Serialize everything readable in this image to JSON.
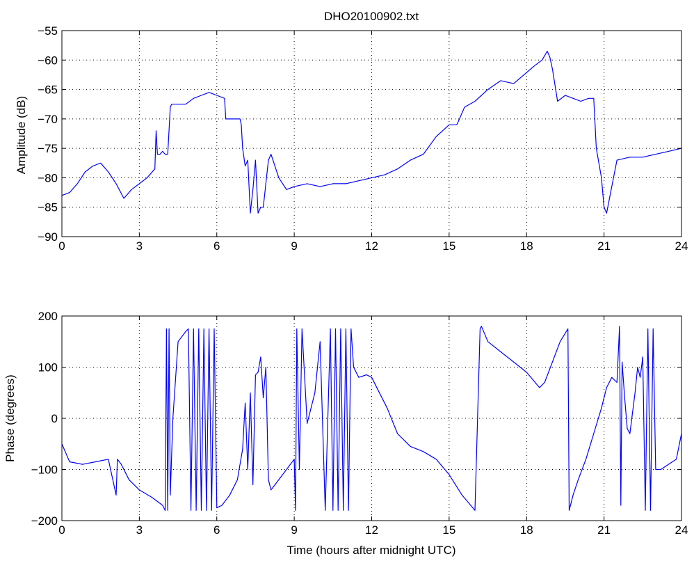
{
  "figure": {
    "title": "DHO20100902.txt",
    "colors": {
      "line": "#0000ff",
      "axes": "#000000",
      "grid": "#000000",
      "background": "#ffffff"
    }
  },
  "chart_data": [
    {
      "type": "line",
      "title": "DHO20100902.txt",
      "xlabel": "",
      "ylabel": "Amplitude (dB)",
      "xlim": [
        0,
        24
      ],
      "ylim": [
        -90,
        -55
      ],
      "xticks": [
        0,
        3,
        6,
        9,
        12,
        15,
        18,
        21,
        24
      ],
      "xtick_labels": [
        "0",
        "3",
        "6",
        "9",
        "12",
        "15",
        "18",
        "21",
        "24"
      ],
      "yticks": [
        -90,
        -85,
        -80,
        -75,
        -70,
        -65,
        -60,
        -55
      ],
      "ytick_labels": [
        "−90",
        "−85",
        "−80",
        "−75",
        "−70",
        "−65",
        "−60",
        "−55"
      ],
      "grid": true,
      "series": [
        {
          "x": [
            0,
            0.3,
            0.6,
            0.9,
            1.2,
            1.5,
            1.8,
            2.1,
            2.4,
            2.7,
            3.0,
            3.3,
            3.6,
            3.65,
            3.7,
            3.8,
            3.9,
            4.0,
            4.1,
            4.2,
            4.25,
            4.5,
            4.8,
            5.1,
            5.4,
            5.7,
            6.0,
            6.3,
            6.35,
            6.6,
            6.9,
            6.95,
            7.0,
            7.1,
            7.2,
            7.3,
            7.4,
            7.5,
            7.6,
            7.7,
            7.8,
            8.0,
            8.1,
            8.4,
            8.7,
            9.0,
            9.5,
            10.0,
            10.5,
            11.0,
            11.5,
            12.0,
            12.5,
            13.0,
            13.5,
            14.0,
            14.5,
            15.0,
            15.3,
            15.6,
            16.0,
            16.5,
            17.0,
            17.5,
            17.9,
            18.3,
            18.6,
            18.8,
            18.9,
            19.0,
            19.2,
            19.5,
            19.8,
            20.1,
            20.4,
            20.6,
            20.7,
            20.9,
            21.0,
            21.1,
            21.5,
            22.0,
            22.5,
            23.0,
            23.5,
            24.0
          ],
          "y": [
            -83,
            -82.5,
            -81,
            -79,
            -78,
            -77.5,
            -79,
            -81,
            -83.5,
            -82,
            -81,
            -80,
            -78.5,
            -72,
            -76,
            -76,
            -75.5,
            -76,
            -76,
            -68,
            -67.5,
            -67.5,
            -67.5,
            -66.5,
            -66,
            -65.5,
            -66,
            -66.5,
            -70,
            -70,
            -70,
            -71,
            -75,
            -78,
            -77,
            -86,
            -82,
            -77,
            -86,
            -85,
            -85,
            -77,
            -76,
            -80,
            -82,
            -81.5,
            -81,
            -81.5,
            -81,
            -81,
            -80.5,
            -80,
            -79.5,
            -78.5,
            -77,
            -76,
            -73,
            -71,
            -71,
            -68,
            -67,
            -65,
            -63.5,
            -64,
            -62.5,
            -61,
            -60,
            -58.5,
            -59.5,
            -61.5,
            -67,
            -66,
            -66.5,
            -67,
            -66.5,
            -66.5,
            -75,
            -80,
            -85,
            -86,
            -77,
            -76.5,
            -76.5,
            -76,
            -75.5,
            -75
          ]
        }
      ]
    },
    {
      "type": "line",
      "title": "",
      "xlabel": "Time (hours after midnight UTC)",
      "ylabel": "Phase (degrees)",
      "xlim": [
        0,
        24
      ],
      "ylim": [
        -200,
        200
      ],
      "xticks": [
        0,
        3,
        6,
        9,
        12,
        15,
        18,
        21,
        24
      ],
      "xtick_labels": [
        "0",
        "3",
        "6",
        "9",
        "12",
        "15",
        "18",
        "21",
        "24"
      ],
      "yticks": [
        -200,
        -100,
        0,
        100,
        200
      ],
      "ytick_labels": [
        "−200",
        "−100",
        "0",
        "100",
        "200"
      ],
      "grid": true,
      "series": [
        {
          "x": [
            0,
            0.3,
            0.8,
            1.3,
            1.8,
            2.1,
            2.15,
            2.3,
            2.6,
            3.0,
            3.5,
            3.9,
            4.0,
            4.05,
            4.1,
            4.15,
            4.2,
            4.3,
            4.5,
            4.8,
            4.9,
            5.0,
            5.1,
            5.2,
            5.3,
            5.4,
            5.5,
            5.6,
            5.7,
            5.8,
            5.9,
            6.0,
            6.2,
            6.5,
            6.8,
            7.0,
            7.1,
            7.2,
            7.3,
            7.4,
            7.5,
            7.6,
            7.7,
            7.8,
            7.9,
            8.0,
            8.1,
            8.4,
            8.7,
            9.0,
            9.05,
            9.1,
            9.2,
            9.3,
            9.5,
            9.8,
            10.0,
            10.2,
            10.4,
            10.5,
            10.6,
            10.7,
            10.8,
            10.9,
            11.0,
            11.1,
            11.2,
            11.3,
            11.5,
            11.8,
            12.0,
            12.3,
            12.6,
            13.0,
            13.5,
            14.0,
            14.5,
            15.0,
            15.5,
            16.0,
            16.2,
            16.25,
            16.5,
            17.0,
            17.5,
            18.0,
            18.5,
            18.7,
            19.0,
            19.3,
            19.6,
            19.65,
            19.8,
            20.0,
            20.3,
            20.6,
            20.9,
            21.1,
            21.3,
            21.5,
            21.6,
            21.65,
            21.7,
            21.8,
            21.9,
            22.0,
            22.2,
            22.3,
            22.4,
            22.5,
            22.6,
            22.7,
            22.8,
            22.9,
            23.0,
            23.2,
            23.5,
            23.8,
            24.0
          ],
          "y": [
            -50,
            -85,
            -90,
            -85,
            -80,
            -150,
            -80,
            -90,
            -120,
            -140,
            -155,
            -170,
            -180,
            175,
            -180,
            175,
            -150,
            0,
            150,
            170,
            175,
            -180,
            175,
            -180,
            175,
            -180,
            175,
            -180,
            175,
            -180,
            175,
            -175,
            -170,
            -150,
            -120,
            -60,
            30,
            -100,
            50,
            -130,
            85,
            90,
            120,
            40,
            100,
            -120,
            -140,
            -120,
            -100,
            -80,
            -180,
            175,
            -100,
            175,
            -10,
            50,
            150,
            -180,
            175,
            -180,
            175,
            -180,
            175,
            -180,
            175,
            -180,
            175,
            100,
            80,
            85,
            80,
            50,
            20,
            -30,
            -55,
            -65,
            -80,
            -110,
            -150,
            -180,
            175,
            180,
            150,
            130,
            110,
            90,
            60,
            70,
            110,
            150,
            175,
            -180,
            -150,
            -120,
            -80,
            -30,
            20,
            60,
            80,
            70,
            180,
            -170,
            110,
            40,
            -20,
            -30,
            50,
            100,
            80,
            120,
            -180,
            175,
            -180,
            175,
            -100,
            -100,
            -90,
            -80,
            -30
          ]
        }
      ]
    }
  ]
}
